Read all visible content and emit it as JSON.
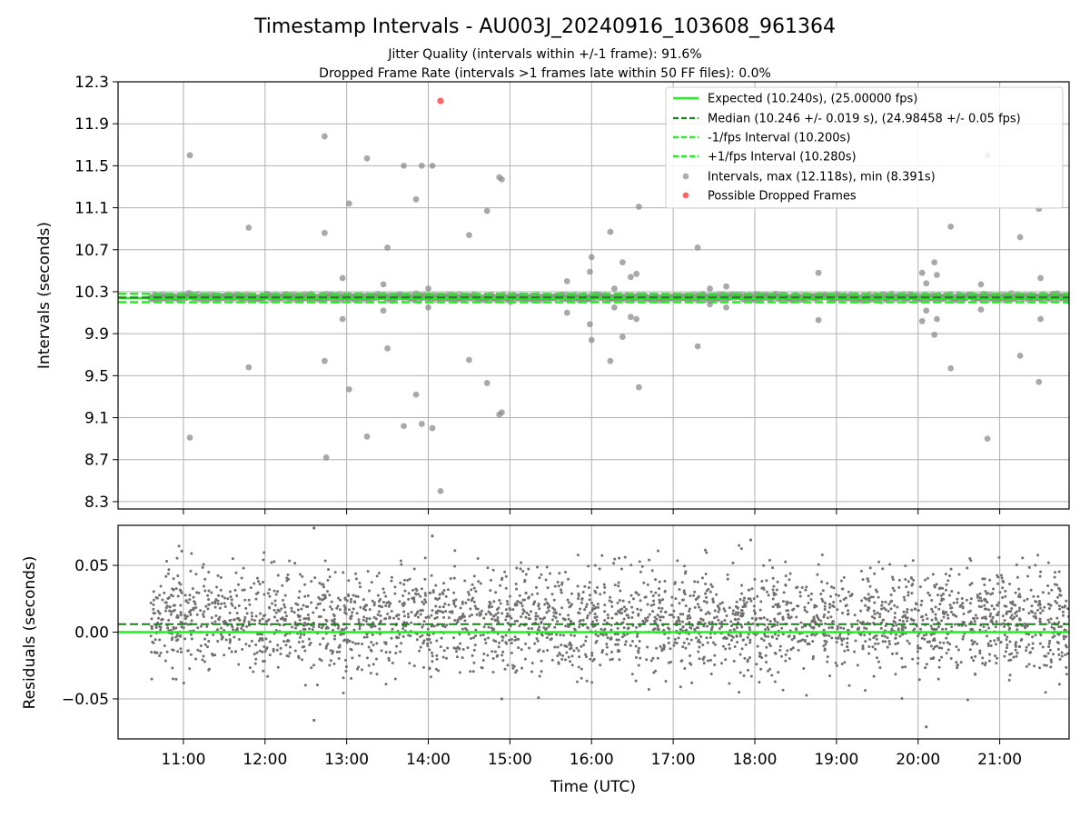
{
  "figure": {
    "title": "Timestamp Intervals - AU003J_20240916_103608_961364",
    "subtitle_line1": "Jitter Quality (intervals within +/-1 frame): 91.6%",
    "subtitle_line2": "Dropped Frame Rate (intervals >1 frames late within 50 FF files): 0.0%"
  },
  "colors": {
    "expected": "#22ee22",
    "median": "#1a7f1a",
    "interval_band": "#22ee22",
    "intervals": "#8c8c8c",
    "dropped": "#ff5555",
    "residuals": "#707070",
    "grid": "#b0b0b0"
  },
  "chart_data": [
    {
      "type": "scatter",
      "ylabel": "Intervals (seconds)",
      "ylim": [
        8.23,
        12.3
      ],
      "yticks": [
        "8.3",
        "8.7",
        "9.1",
        "9.5",
        "9.9",
        "10.3",
        "10.7",
        "11.1",
        "11.5",
        "11.9",
        "12.3"
      ],
      "xlim_hours": [
        10.2,
        21.85
      ],
      "grid": true,
      "legend_position": "top-right",
      "legend": [
        "Expected (10.240s), (25.00000 fps)",
        "Median (10.246 +/- 0.019 s), (24.98458 +/- 0.05 fps)",
        "-1/fps Interval (10.200s)",
        "+1/fps Interval (10.280s)",
        "Intervals, max (12.118s), min (8.391s)",
        "Possible Dropped Frames"
      ],
      "expected": 10.24,
      "median": 10.246,
      "lower_interval": 10.2,
      "upper_interval": 10.28,
      "series": [
        {
          "name": "Intervals, max (12.118s), min (8.391s)",
          "points": [
            [
              11.08,
              11.6
            ],
            [
              11.08,
              8.91
            ],
            [
              11.8,
              10.91
            ],
            [
              11.8,
              9.58
            ],
            [
              12.73,
              11.78
            ],
            [
              12.73,
              10.86
            ],
            [
              12.73,
              9.64
            ],
            [
              12.75,
              8.72
            ],
            [
              12.95,
              10.43
            ],
            [
              12.95,
              10.04
            ],
            [
              13.03,
              11.14
            ],
            [
              13.03,
              9.37
            ],
            [
              13.25,
              11.57
            ],
            [
              13.25,
              8.92
            ],
            [
              13.45,
              10.37
            ],
            [
              13.45,
              10.12
            ],
            [
              13.5,
              10.72
            ],
            [
              13.5,
              9.76
            ],
            [
              13.7,
              11.5
            ],
            [
              13.7,
              9.02
            ],
            [
              13.85,
              11.18
            ],
            [
              13.85,
              9.32
            ],
            [
              13.92,
              11.5
            ],
            [
              13.92,
              9.04
            ],
            [
              14.05,
              11.5
            ],
            [
              14.05,
              9.0
            ],
            [
              14.0,
              10.33
            ],
            [
              14.0,
              10.15
            ],
            [
              14.15,
              8.4
            ],
            [
              14.5,
              10.84
            ],
            [
              14.5,
              9.65
            ],
            [
              14.72,
              11.07
            ],
            [
              14.72,
              9.43
            ],
            [
              14.87,
              11.39
            ],
            [
              14.87,
              9.13
            ],
            [
              14.9,
              11.37
            ],
            [
              14.9,
              9.15
            ],
            [
              15.7,
              10.4
            ],
            [
              15.7,
              10.1
            ],
            [
              15.98,
              10.49
            ],
            [
              15.98,
              9.99
            ],
            [
              16.0,
              10.63
            ],
            [
              16.0,
              9.84
            ],
            [
              16.23,
              10.87
            ],
            [
              16.23,
              9.64
            ],
            [
              16.28,
              10.33
            ],
            [
              16.28,
              10.15
            ],
            [
              16.38,
              10.58
            ],
            [
              16.38,
              9.87
            ],
            [
              16.48,
              10.44
            ],
            [
              16.48,
              10.06
            ],
            [
              16.55,
              10.47
            ],
            [
              16.55,
              10.04
            ],
            [
              16.58,
              11.11
            ],
            [
              16.58,
              9.39
            ],
            [
              17.3,
              10.72
            ],
            [
              17.3,
              9.78
            ],
            [
              17.45,
              10.33
            ],
            [
              17.45,
              10.18
            ],
            [
              17.65,
              10.35
            ],
            [
              17.65,
              10.15
            ],
            [
              18.78,
              10.48
            ],
            [
              18.78,
              10.03
            ],
            [
              20.05,
              10.48
            ],
            [
              20.05,
              10.02
            ],
            [
              20.1,
              10.38
            ],
            [
              20.1,
              10.12
            ],
            [
              20.2,
              10.58
            ],
            [
              20.2,
              9.89
            ],
            [
              20.23,
              10.46
            ],
            [
              20.23,
              10.04
            ],
            [
              20.4,
              10.92
            ],
            [
              20.4,
              9.57
            ],
            [
              20.77,
              10.37
            ],
            [
              20.77,
              10.13
            ],
            [
              20.85,
              11.6
            ],
            [
              20.85,
              8.9
            ],
            [
              21.25,
              10.82
            ],
            [
              21.25,
              9.69
            ],
            [
              21.48,
              11.09
            ],
            [
              21.48,
              9.44
            ],
            [
              21.5,
              10.43
            ],
            [
              21.5,
              10.04
            ]
          ]
        },
        {
          "name": "Possible Dropped Frames",
          "points": [
            [
              14.15,
              12.118
            ]
          ]
        }
      ]
    },
    {
      "type": "scatter",
      "xlabel": "Time (UTC)",
      "ylabel": "Residuals (seconds)",
      "ylim": [
        -0.08,
        0.08
      ],
      "yticks": [
        "−0.05",
        "0.00",
        "0.05"
      ],
      "ytick_values": [
        -0.05,
        0.0,
        0.05
      ],
      "xticks": [
        "11:00",
        "12:00",
        "13:00",
        "14:00",
        "15:00",
        "16:00",
        "17:00",
        "18:00",
        "19:00",
        "20:00",
        "21:00"
      ],
      "xlim_hours": [
        10.2,
        21.85
      ],
      "grid": true,
      "expected_residual": 0.0,
      "median_residual": 0.006,
      "series": [
        {
          "name": "Residuals",
          "x_range_hours": [
            10.6,
            21.85
          ],
          "count": 2900,
          "center": 0.008,
          "spread": 0.019,
          "extremes": [
            [
              12.6,
              0.078
            ],
            [
              12.6,
              -0.066
            ],
            [
              14.05,
              0.072
            ],
            [
              20.1,
              -0.071
            ],
            [
              17.95,
              0.069
            ],
            [
              14.9,
              -0.05
            ]
          ]
        }
      ]
    }
  ]
}
